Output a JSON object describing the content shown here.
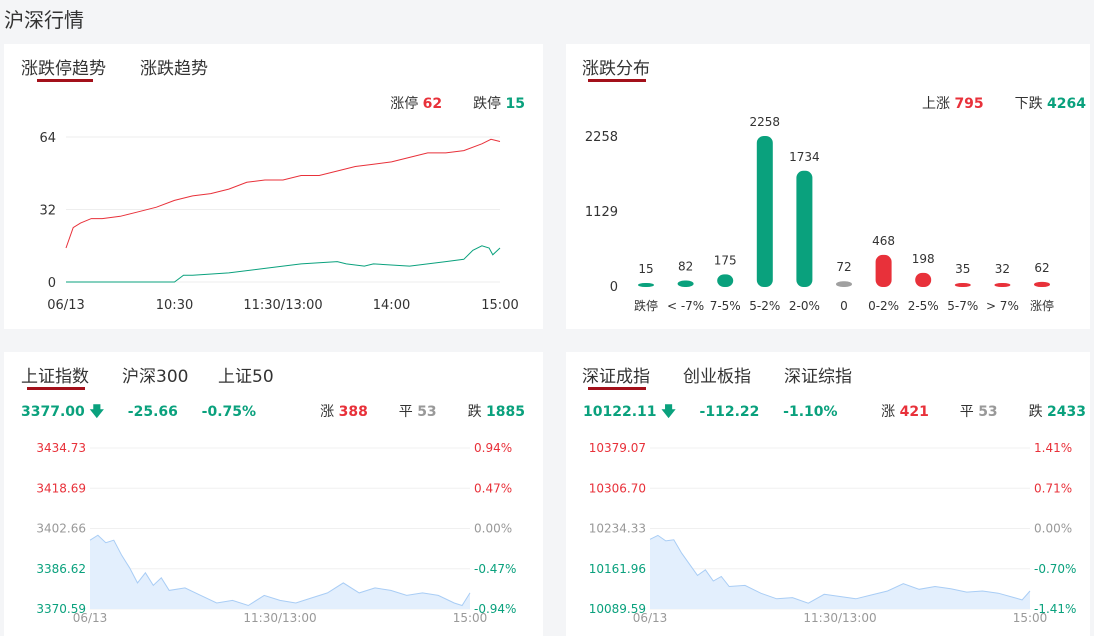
{
  "page_title": "沪深行情",
  "limit_panel": {
    "tabs": [
      "涨跌停趋势",
      "涨跌趋势"
    ],
    "limit_up_label": "涨停",
    "limit_up_value": "62",
    "limit_down_label": "跌停",
    "limit_down_value": "15",
    "chart_data": {
      "type": "line",
      "title": "",
      "x_ticks": [
        "06/13",
        "10:30",
        "11:30/13:00",
        "14:00",
        "15:00"
      ],
      "y_ticks": [
        "64",
        "32",
        "0"
      ],
      "ylim": [
        0,
        64
      ],
      "series": [
        {
          "name": "涨停",
          "color": "#e8313a",
          "x": [
            0,
            4,
            8,
            14,
            20,
            30,
            40,
            50,
            60,
            70,
            80,
            90,
            100,
            110,
            120,
            130,
            140,
            150,
            160,
            170,
            180,
            190,
            200,
            210,
            220,
            230,
            235,
            240
          ],
          "values": [
            15,
            24,
            26,
            28,
            28,
            29,
            31,
            33,
            36,
            38,
            39,
            41,
            44,
            45,
            45,
            47,
            47,
            49,
            51,
            52,
            53,
            55,
            57,
            57,
            58,
            61,
            63,
            62
          ]
        },
        {
          "name": "跌停",
          "color": "#0aa17d",
          "x": [
            0,
            30,
            60,
            65,
            70,
            90,
            110,
            130,
            150,
            155,
            165,
            170,
            190,
            200,
            210,
            220,
            225,
            230,
            234,
            236,
            240
          ],
          "values": [
            0,
            0,
            0,
            3,
            3,
            4,
            6,
            8,
            9,
            8,
            7,
            8,
            7,
            8,
            9,
            10,
            14,
            16,
            15,
            12,
            15
          ]
        }
      ]
    }
  },
  "dist_panel": {
    "tab": "涨跌分布",
    "up_label": "上涨",
    "up_value": "795",
    "down_label": "下跌",
    "down_value": "4264",
    "chart_data": {
      "type": "bar",
      "title": "",
      "categories": [
        "跌停",
        "< -7%",
        "7-5%",
        "5-2%",
        "2-0%",
        "0",
        "0-2%",
        "2-5%",
        "5-7%",
        "> 7%",
        "涨停"
      ],
      "values": [
        15,
        82,
        175,
        2258,
        1734,
        72,
        468,
        198,
        35,
        32,
        62
      ],
      "colors": [
        "#0aa17d",
        "#0aa17d",
        "#0aa17d",
        "#0aa17d",
        "#0aa17d",
        "#a0a0a0",
        "#e8313a",
        "#e8313a",
        "#e8313a",
        "#e8313a",
        "#e8313a"
      ],
      "y_ticks": [
        "2258",
        "1129",
        "0"
      ],
      "ylim": [
        0,
        2258
      ]
    }
  },
  "sh_panel": {
    "tabs": [
      "上证指数",
      "沪深300",
      "上证50"
    ],
    "price": "3377.00",
    "change": "-25.66",
    "pct": "-0.75%",
    "up_label": "涨",
    "up_value": "388",
    "flat_label": "平",
    "flat_value": "53",
    "down_label": "跌",
    "down_value": "1885",
    "chart_data": {
      "type": "area",
      "left_ticks": [
        "3434.73",
        "3418.69",
        "3402.66",
        "3386.62",
        "3370.59"
      ],
      "right_ticks": [
        "0.94%",
        "0.47%",
        "0.00%",
        "-0.47%",
        "-0.94%"
      ],
      "x_ticks": [
        "06/13",
        "11:30/13:00",
        "15:00"
      ],
      "ylim": [
        3370.59,
        3434.73
      ],
      "x": [
        0,
        5,
        10,
        15,
        20,
        25,
        30,
        35,
        40,
        45,
        50,
        60,
        70,
        80,
        90,
        100,
        110,
        120,
        130,
        140,
        150,
        160,
        170,
        180,
        190,
        200,
        210,
        220,
        230,
        235,
        240
      ],
      "values": [
        3398,
        3400,
        3397,
        3398,
        3392,
        3387,
        3381,
        3385,
        3380,
        3383,
        3378,
        3379,
        3376,
        3373,
        3374,
        3372,
        3376,
        3374,
        3373,
        3375,
        3377,
        3381,
        3377,
        3379,
        3378,
        3376,
        3377,
        3376,
        3373,
        3372,
        3377
      ]
    }
  },
  "sz_panel": {
    "tabs": [
      "深证成指",
      "创业板指",
      "深证综指"
    ],
    "price": "10122.11",
    "change": "-112.22",
    "pct": "-1.10%",
    "up_label": "涨",
    "up_value": "421",
    "flat_label": "平",
    "flat_value": "53",
    "down_label": "跌",
    "down_value": "2433",
    "chart_data": {
      "type": "area",
      "left_ticks": [
        "10379.07",
        "10306.70",
        "10234.33",
        "10161.96",
        "10089.59"
      ],
      "right_ticks": [
        "1.41%",
        "0.71%",
        "0.00%",
        "-0.70%",
        "-1.41%"
      ],
      "x_ticks": [
        "06/13",
        "11:30/13:00",
        "15:00"
      ],
      "ylim": [
        10089.59,
        10379.07
      ],
      "x": [
        0,
        5,
        10,
        15,
        20,
        25,
        30,
        35,
        40,
        45,
        50,
        60,
        70,
        80,
        90,
        100,
        110,
        120,
        130,
        140,
        150,
        160,
        170,
        180,
        190,
        200,
        210,
        220,
        230,
        235,
        240
      ],
      "values": [
        10215,
        10222,
        10212,
        10214,
        10190,
        10170,
        10150,
        10160,
        10140,
        10148,
        10130,
        10132,
        10118,
        10108,
        10110,
        10100,
        10116,
        10112,
        10108,
        10115,
        10122,
        10135,
        10125,
        10130,
        10126,
        10120,
        10122,
        10118,
        10110,
        10106,
        10122
      ]
    }
  },
  "colors": {
    "up": "#e8313a",
    "down": "#0aa17d",
    "flat": "#999999",
    "accent": "#a3101a",
    "area_fill": "#e3effd",
    "area_line": "#a9cdf5"
  }
}
